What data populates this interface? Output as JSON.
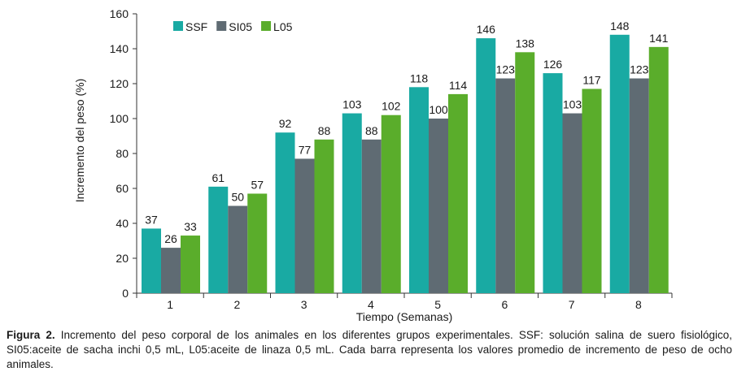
{
  "chart_data": {
    "type": "bar",
    "xlabel": "Tiempo (Semanas)",
    "ylabel": "Incremento del peso (%)",
    "ylim": [
      0,
      160
    ],
    "yticks": [
      0,
      20,
      40,
      60,
      80,
      100,
      120,
      140,
      160
    ],
    "categories": [
      "1",
      "2",
      "3",
      "4",
      "5",
      "6",
      "7",
      "8"
    ],
    "series": [
      {
        "name": "SSF",
        "color": "#19aaa3",
        "values": [
          37,
          61,
          92,
          103,
          118,
          146,
          126,
          148
        ]
      },
      {
        "name": "SI05",
        "color": "#5f6b73",
        "values": [
          26,
          50,
          77,
          88,
          100,
          123,
          103,
          123
        ]
      },
      {
        "name": "L05",
        "color": "#5aad2b",
        "values": [
          33,
          57,
          88,
          102,
          114,
          138,
          117,
          141
        ]
      }
    ],
    "legend_position": "top-left",
    "grid": false
  },
  "caption": {
    "label": "Figura 2.",
    "text": " Incremento del peso corporal de los animales en los diferentes grupos experimentales. SSF: solución salina de suero fisiológico, SI05:aceite de sacha inchi 0,5 mL, L05:aceite de linaza 0,5 mL. Cada barra representa los valores promedio de incremento de peso de ocho animales."
  }
}
